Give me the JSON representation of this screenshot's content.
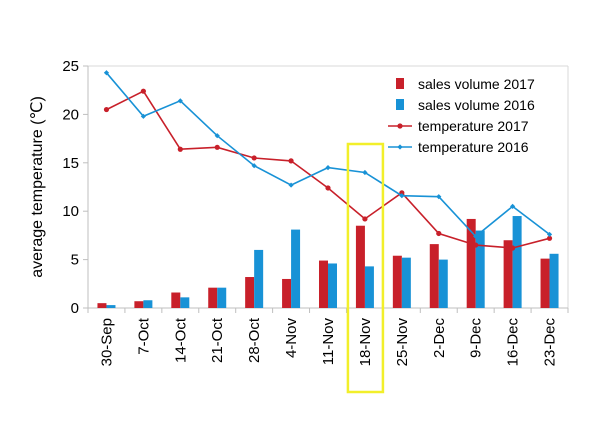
{
  "chart_data": {
    "type": "bar",
    "title": "",
    "xlabel": "",
    "ylabel": "average temperature (℃)",
    "ylim": [
      0,
      25
    ],
    "yticks": [
      0,
      5,
      10,
      15,
      20,
      25
    ],
    "grid": false,
    "legend_position": "right",
    "highlight_category": "18-Nov",
    "highlight_color": "#f2ef2a",
    "categories": [
      "30-Sep",
      "7-Oct",
      "14-Oct",
      "21-Oct",
      "28-Oct",
      "4-Nov",
      "11-Nov",
      "18-Nov",
      "25-Nov",
      "2-Dec",
      "9-Dec",
      "16-Dec",
      "23-Dec"
    ],
    "series": [
      {
        "name": "sales volume 2017",
        "kind": "bar",
        "color": "#c8202a",
        "values": [
          0.5,
          0.7,
          1.6,
          2.1,
          3.2,
          3.0,
          4.9,
          8.5,
          5.4,
          6.6,
          9.2,
          7.0,
          5.1
        ]
      },
      {
        "name": "sales volume 2016",
        "kind": "bar",
        "color": "#1892d6",
        "values": [
          0.3,
          0.8,
          1.1,
          2.1,
          6.0,
          8.1,
          4.6,
          4.3,
          5.2,
          5.0,
          8.0,
          9.5,
          5.6
        ]
      },
      {
        "name": "temperature 2017",
        "kind": "line",
        "color": "#c8202a",
        "marker": "circle",
        "values": [
          20.5,
          22.4,
          16.4,
          16.6,
          15.5,
          15.2,
          12.4,
          9.2,
          11.9,
          7.7,
          6.5,
          6.2,
          7.2
        ]
      },
      {
        "name": "temperature 2016",
        "kind": "line",
        "color": "#1892d6",
        "marker": "diamond",
        "values": [
          24.3,
          19.8,
          21.4,
          17.8,
          14.7,
          12.7,
          14.5,
          14.0,
          11.6,
          11.5,
          7.4,
          10.5,
          7.6
        ]
      }
    ]
  }
}
